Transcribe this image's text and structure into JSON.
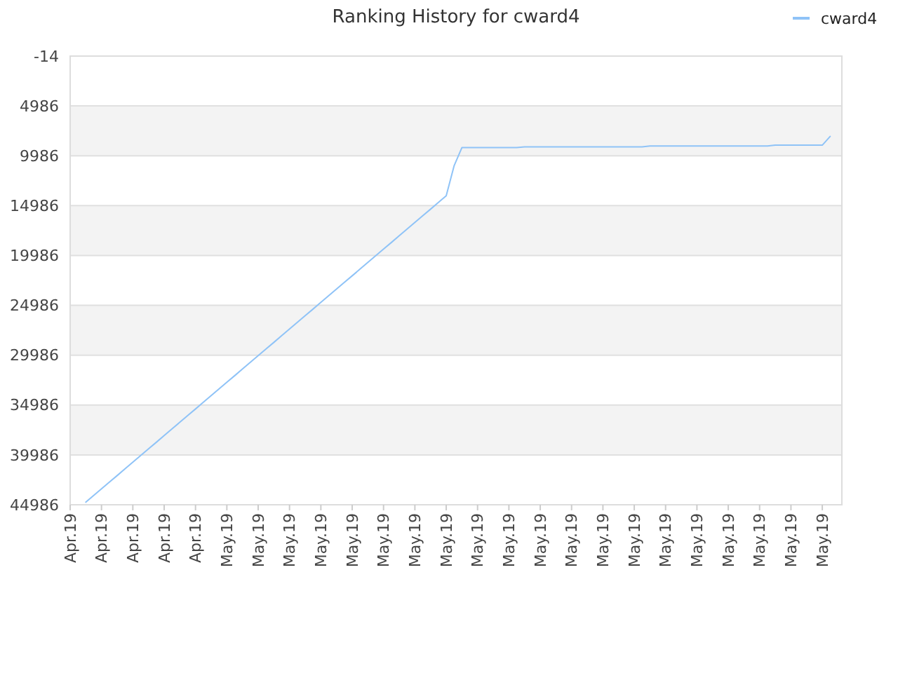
{
  "chart_data": {
    "type": "line",
    "title": "Ranking History for cward4",
    "categories": [
      "Apr.19",
      null,
      null,
      null,
      "Apr.19",
      null,
      null,
      null,
      "Apr.19",
      null,
      null,
      null,
      "Apr.19",
      null,
      null,
      null,
      "Apr.19",
      null,
      null,
      null,
      "May.19",
      null,
      null,
      null,
      "May.19",
      null,
      null,
      null,
      "May.19",
      null,
      null,
      null,
      "May.19",
      null,
      null,
      null,
      "May.19",
      null,
      null,
      null,
      "May.19",
      null,
      null,
      null,
      "May.19",
      null,
      null,
      null,
      "May.19",
      null,
      null,
      null,
      "May.19",
      null,
      null,
      null,
      "May.19",
      null,
      null,
      null,
      "May.19",
      null,
      null,
      null,
      "May.19",
      null,
      null,
      null,
      "May.19",
      null,
      null,
      null,
      "May.19",
      null,
      null,
      null,
      "May.19",
      null,
      null,
      null,
      "May.19",
      null,
      null,
      null,
      "May.19",
      null,
      null,
      null,
      "May.19",
      null,
      null,
      null,
      "May.19",
      null,
      null,
      null,
      "May.19",
      null,
      null
    ],
    "ylim": [
      44986,
      -14
    ],
    "yticks": [
      -14,
      4986,
      9986,
      14986,
      19986,
      24986,
      29986,
      34986,
      39986,
      44986
    ],
    "grid": "y",
    "legend": "top right",
    "marker": "none",
    "line_style": "solid",
    "series": [
      {
        "name": "cward4",
        "color": "#8fc3f7",
        "values": [
          null,
          null,
          44730,
          44060,
          43390,
          42720,
          42060,
          41390,
          40720,
          40050,
          39380,
          38720,
          38050,
          37380,
          36710,
          36040,
          35380,
          34710,
          34040,
          33370,
          32700,
          32040,
          31370,
          30700,
          30030,
          29360,
          28700,
          28030,
          27360,
          26690,
          26020,
          25360,
          24690,
          24020,
          23350,
          22680,
          22020,
          21350,
          20680,
          20010,
          19340,
          18680,
          18010,
          17340,
          16670,
          16000,
          15340,
          14670,
          14000,
          11000,
          9170,
          9170,
          9170,
          9170,
          9170,
          9170,
          9170,
          9170,
          9090,
          9090,
          9090,
          9090,
          9090,
          9090,
          9090,
          9090,
          9090,
          9090,
          9090,
          9090,
          9090,
          9090,
          9090,
          9090,
          9010,
          9010,
          9010,
          9010,
          9010,
          9010,
          9010,
          9010,
          9010,
          9010,
          9010,
          9010,
          9010,
          9010,
          9010,
          9010,
          8920,
          8920,
          8920,
          8920,
          8920,
          8920,
          8920,
          8040,
          null
        ]
      }
    ]
  }
}
